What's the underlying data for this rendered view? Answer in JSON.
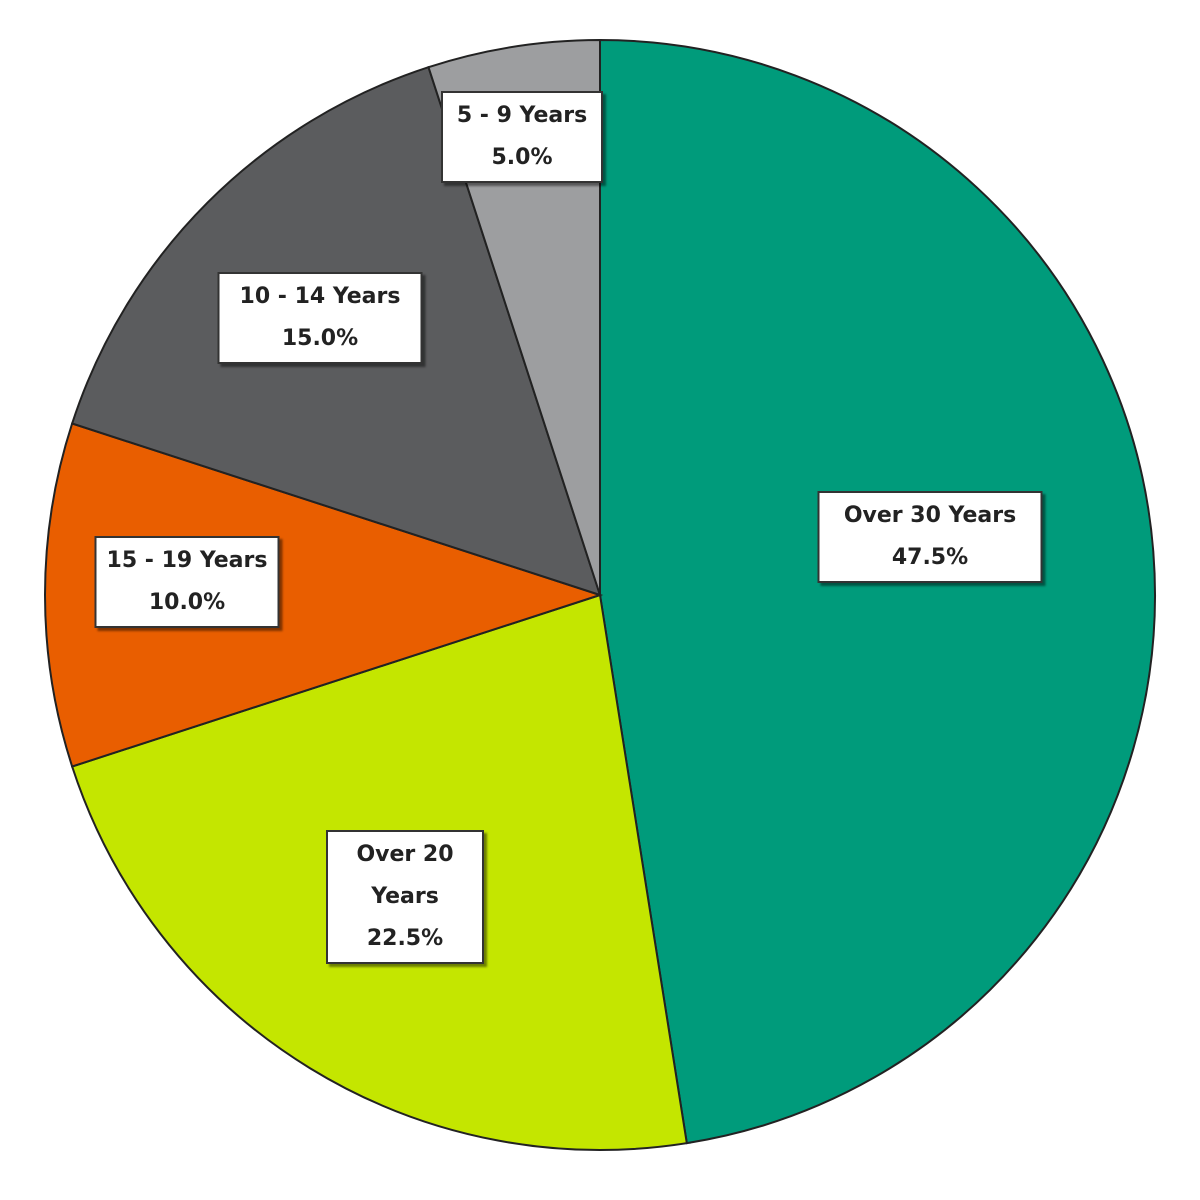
{
  "chart_data": {
    "type": "pie",
    "categories": [
      "Over 30 Years",
      "Over 20 Years",
      "15 - 19 Years",
      "10 - 14 Years",
      "5 - 9 Years"
    ],
    "values": [
      47.5,
      22.5,
      10.0,
      15.0,
      5.0
    ],
    "value_labels": [
      "47.5%",
      "22.5%",
      "10.0%",
      "15.0%",
      "5.0%"
    ],
    "colors": [
      "#009b7b",
      "#c4e600",
      "#e95e00",
      "#5b5c5e",
      "#9d9ea0"
    ]
  }
}
